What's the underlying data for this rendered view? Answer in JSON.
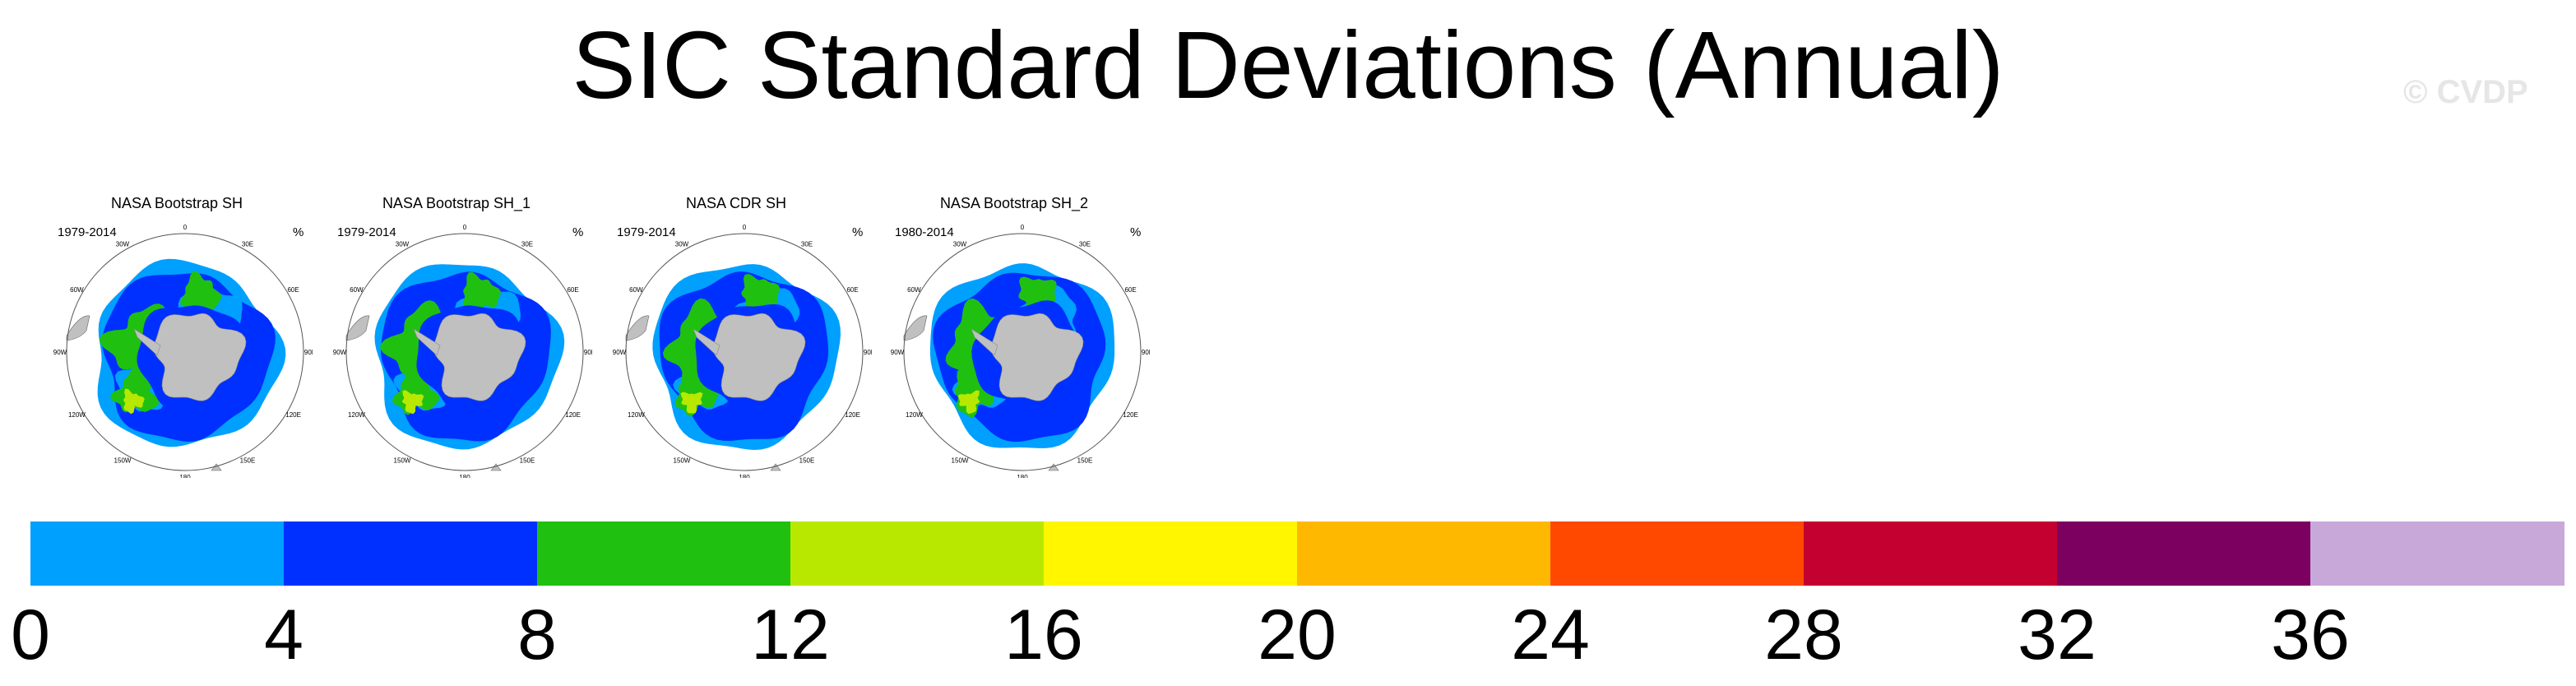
{
  "title": "SIC Standard Deviations (Annual)",
  "watermark": "© CVDP",
  "panels": [
    {
      "title": "NASA Bootstrap SH",
      "years": "1979-2014",
      "unit": "%"
    },
    {
      "title": "NASA Bootstrap SH_1",
      "years": "1979-2014",
      "unit": "%"
    },
    {
      "title": "NASA CDR SH",
      "years": "1979-2014",
      "unit": "%"
    },
    {
      "title": "NASA Bootstrap SH_2",
      "years": "1980-2014",
      "unit": "%"
    }
  ],
  "longitude_labels": [
    "0",
    "30E",
    "60E",
    "90E",
    "120E",
    "150E",
    "180",
    "150W",
    "120W",
    "90W",
    "60W",
    "30W"
  ],
  "colorbar": {
    "colors": [
      "#00a0ff",
      "#0030ff",
      "#20c010",
      "#b8e800",
      "#fff600",
      "#ffb800",
      "#ff4800",
      "#c40030",
      "#7c0060",
      "#c8a8d8"
    ],
    "tick_labels": [
      "0",
      "4",
      "8",
      "12",
      "16",
      "20",
      "24",
      "28",
      "32",
      "36"
    ]
  },
  "colors": {
    "land": "#c0c0c0",
    "background": "#ffffff"
  }
}
